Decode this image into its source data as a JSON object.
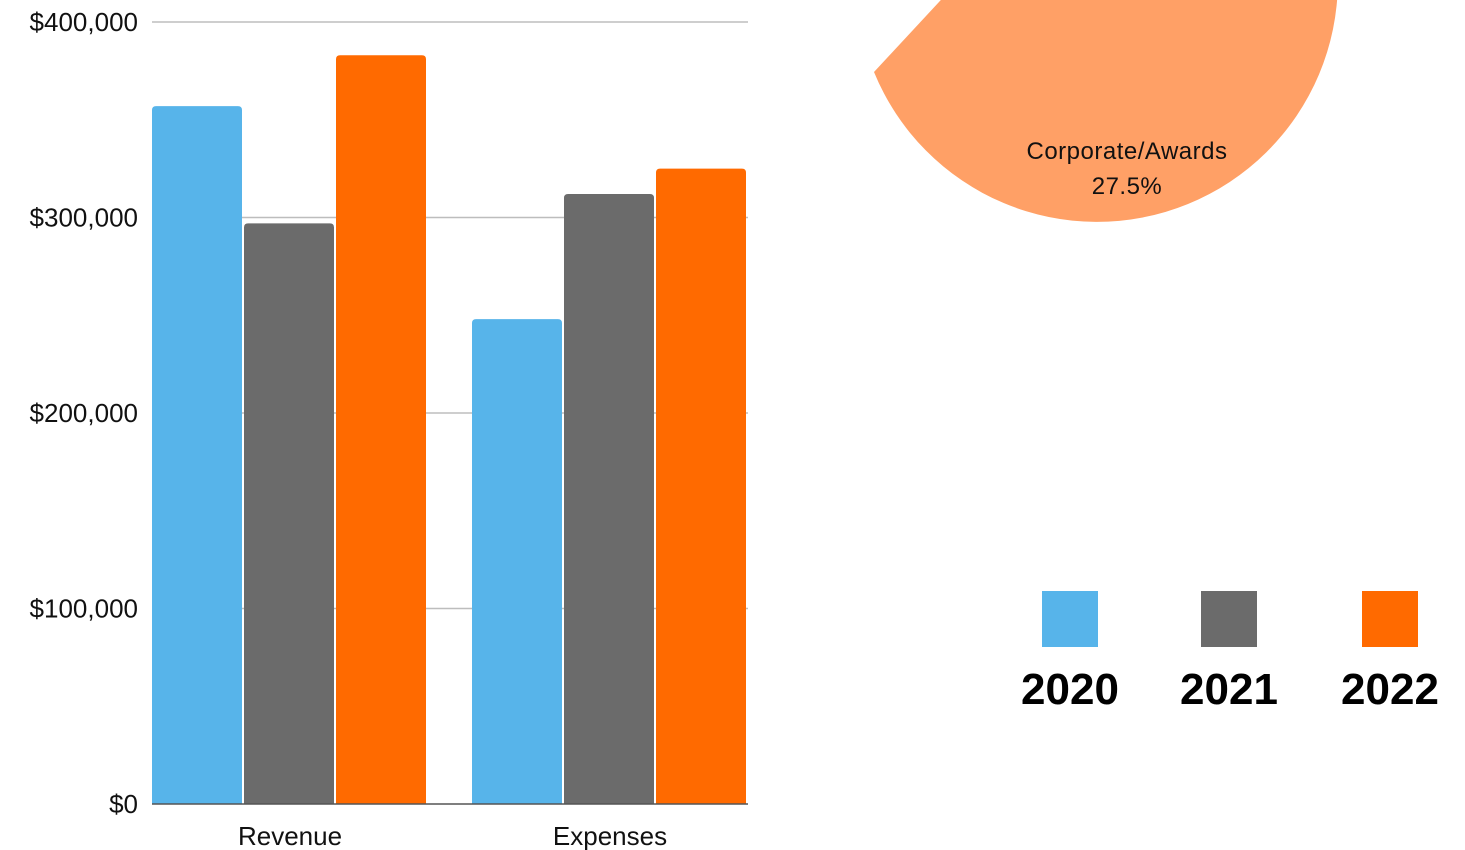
{
  "chart_data": [
    {
      "type": "bar",
      "categories": [
        "Revenue",
        "Expenses"
      ],
      "series": [
        {
          "name": "2020",
          "values": [
            357000,
            248000
          ],
          "color": "#57B4EA"
        },
        {
          "name": "2021",
          "values": [
            297000,
            312000
          ],
          "color": "#6B6B6B"
        },
        {
          "name": "2022",
          "values": [
            383000,
            325000
          ],
          "color": "#FF6A00"
        }
      ],
      "yticks": [
        "$0",
        "$100,000",
        "$200,000",
        "$300,000",
        "$400,000"
      ],
      "ytick_values": [
        0,
        100000,
        200000,
        300000,
        400000
      ],
      "ylim": [
        0,
        400000
      ],
      "grid": true,
      "legend": "right",
      "title": "",
      "xlabel": "",
      "ylabel": ""
    },
    {
      "type": "pie",
      "note": "cropped at top; only partially visible",
      "slices": [
        {
          "label": "Corporate/Awards",
          "value_label": "27.5%",
          "value": 27.5,
          "color": "#FFA066"
        },
        {
          "label": "",
          "value_label": "",
          "value": null,
          "color": "#A09C98"
        }
      ]
    }
  ],
  "legend": {
    "items": [
      {
        "label": "2020",
        "color": "#57B4EA"
      },
      {
        "label": "2021",
        "color": "#6B6B6B"
      },
      {
        "label": "2022",
        "color": "#FF6A00"
      }
    ]
  }
}
